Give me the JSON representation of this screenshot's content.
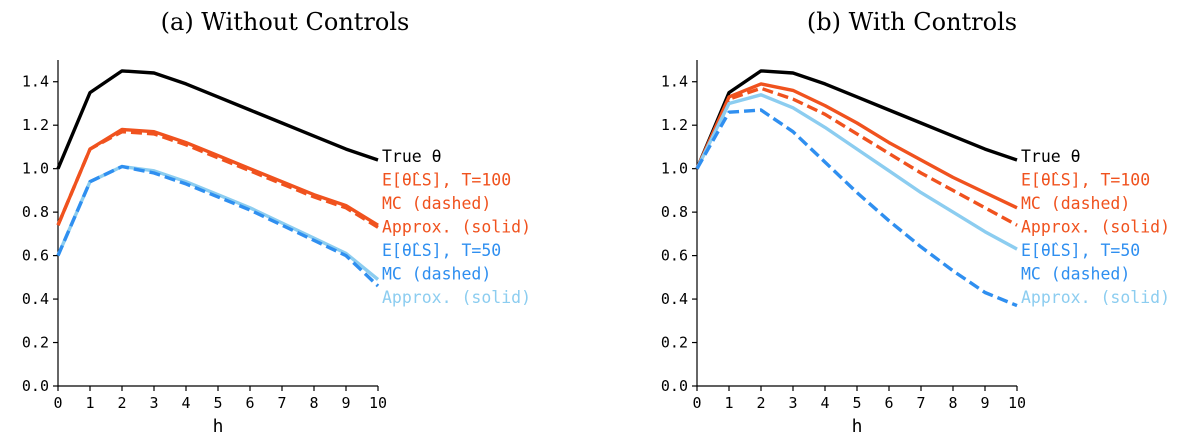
{
  "colors": {
    "true": "#000000",
    "t100": "#f0521e",
    "t50_mc": "#2f8ff0",
    "t50_approx": "#8ccdf0"
  },
  "chart_data": [
    {
      "type": "line",
      "title": "(a) Without Controls",
      "xlabel": "h",
      "ylabel": "",
      "xlim": [
        0,
        10
      ],
      "ylim": [
        0,
        1.5
      ],
      "x": [
        0,
        1,
        2,
        3,
        4,
        5,
        6,
        7,
        8,
        9,
        10
      ],
      "xticks": [
        "0",
        "1",
        "2",
        "3",
        "4",
        "5",
        "6",
        "7",
        "8",
        "9",
        "10"
      ],
      "yticks": [
        "0.0",
        "0.2",
        "0.4",
        "0.6",
        "0.8",
        "1.0",
        "1.2",
        "1.4"
      ],
      "grid": false,
      "legend_position": "right",
      "series": [
        {
          "key": "true",
          "style": "solid",
          "values": [
            1.0,
            1.35,
            1.45,
            1.44,
            1.39,
            1.33,
            1.27,
            1.21,
            1.15,
            1.09,
            1.04
          ]
        },
        {
          "key": "t100",
          "style": "solid",
          "values": [
            0.74,
            1.09,
            1.18,
            1.17,
            1.12,
            1.06,
            1.0,
            0.94,
            0.88,
            0.83,
            0.74
          ]
        },
        {
          "key": "t100",
          "style": "dashed",
          "values": [
            0.74,
            1.09,
            1.17,
            1.16,
            1.11,
            1.05,
            0.99,
            0.93,
            0.87,
            0.82,
            0.73
          ]
        },
        {
          "key": "t50_approx",
          "style": "solid",
          "values": [
            0.6,
            0.94,
            1.01,
            0.99,
            0.94,
            0.88,
            0.82,
            0.75,
            0.68,
            0.61,
            0.49
          ]
        },
        {
          "key": "t50_mc",
          "style": "dashed",
          "values": [
            0.6,
            0.94,
            1.01,
            0.98,
            0.93,
            0.87,
            0.81,
            0.74,
            0.67,
            0.6,
            0.46
          ]
        }
      ],
      "legend": [
        {
          "key": "true",
          "text": "True θ"
        },
        {
          "key": "t100",
          "text": "E[θ̂LS], T=100"
        },
        {
          "key": "t100",
          "text": "MC (dashed)"
        },
        {
          "key": "t100",
          "text": "Approx. (solid)"
        },
        {
          "key": "t50_mc",
          "text": "E[θ̂LS], T=50"
        },
        {
          "key": "t50_mc",
          "text": "MC (dashed)"
        },
        {
          "key": "t50_approx",
          "text": "Approx. (solid)"
        }
      ]
    },
    {
      "type": "line",
      "title": "(b) With Controls",
      "xlabel": "h",
      "ylabel": "",
      "xlim": [
        0,
        10
      ],
      "ylim": [
        0,
        1.5
      ],
      "x": [
        0,
        1,
        2,
        3,
        4,
        5,
        6,
        7,
        8,
        9,
        10
      ],
      "xticks": [
        "0",
        "1",
        "2",
        "3",
        "4",
        "5",
        "6",
        "7",
        "8",
        "9",
        "10"
      ],
      "yticks": [
        "0.0",
        "0.2",
        "0.4",
        "0.6",
        "0.8",
        "1.0",
        "1.2",
        "1.4"
      ],
      "grid": false,
      "legend_position": "right",
      "series": [
        {
          "key": "true",
          "style": "solid",
          "values": [
            1.0,
            1.35,
            1.45,
            1.44,
            1.39,
            1.33,
            1.27,
            1.21,
            1.15,
            1.09,
            1.04
          ]
        },
        {
          "key": "t100",
          "style": "solid",
          "values": [
            1.0,
            1.33,
            1.39,
            1.36,
            1.29,
            1.21,
            1.12,
            1.04,
            0.96,
            0.89,
            0.82
          ]
        },
        {
          "key": "t100",
          "style": "dashed",
          "values": [
            1.0,
            1.32,
            1.37,
            1.32,
            1.25,
            1.16,
            1.07,
            0.98,
            0.9,
            0.82,
            0.74
          ]
        },
        {
          "key": "t50_approx",
          "style": "solid",
          "values": [
            1.0,
            1.3,
            1.34,
            1.28,
            1.19,
            1.09,
            0.99,
            0.89,
            0.8,
            0.71,
            0.63
          ]
        },
        {
          "key": "t50_mc",
          "style": "dashed",
          "values": [
            1.0,
            1.26,
            1.27,
            1.17,
            1.03,
            0.89,
            0.76,
            0.64,
            0.53,
            0.43,
            0.37
          ]
        }
      ],
      "legend": [
        {
          "key": "true",
          "text": "True θ"
        },
        {
          "key": "t100",
          "text": "E[θ̂LS], T=100"
        },
        {
          "key": "t100",
          "text": "MC (dashed)"
        },
        {
          "key": "t100",
          "text": "Approx. (solid)"
        },
        {
          "key": "t50_mc",
          "text": "E[θ̂LS], T=50"
        },
        {
          "key": "t50_mc",
          "text": "MC (dashed)"
        },
        {
          "key": "t50_approx",
          "text": "Approx. (solid)"
        }
      ]
    }
  ]
}
